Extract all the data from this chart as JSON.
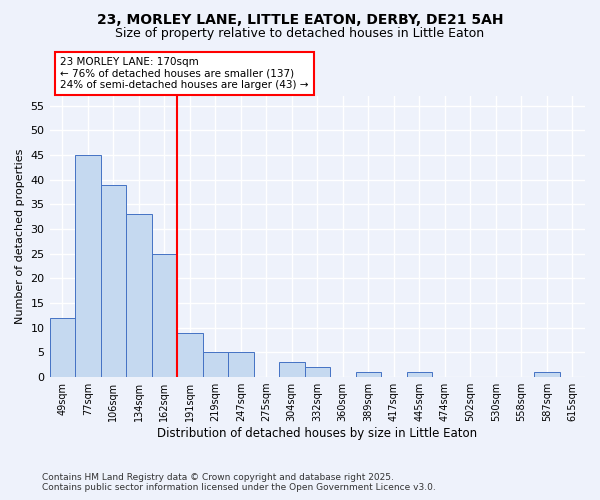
{
  "title_line1": "23, MORLEY LANE, LITTLE EATON, DERBY, DE21 5AH",
  "title_line2": "Size of property relative to detached houses in Little Eaton",
  "categories": [
    "49sqm",
    "77sqm",
    "106sqm",
    "134sqm",
    "162sqm",
    "191sqm",
    "219sqm",
    "247sqm",
    "275sqm",
    "304sqm",
    "332sqm",
    "360sqm",
    "389sqm",
    "417sqm",
    "445sqm",
    "474sqm",
    "502sqm",
    "530sqm",
    "558sqm",
    "587sqm",
    "615sqm"
  ],
  "values": [
    12,
    45,
    39,
    33,
    25,
    9,
    5,
    5,
    0,
    3,
    2,
    0,
    1,
    0,
    1,
    0,
    0,
    0,
    0,
    1,
    0
  ],
  "bar_color": "#c5d9f0",
  "bar_edge_color": "#4472c4",
  "annotation_text": "23 MORLEY LANE: 170sqm\n← 76% of detached houses are smaller (137)\n24% of semi-detached houses are larger (43) →",
  "annotation_box_color": "white",
  "annotation_box_edge_color": "red",
  "vline_x_index": 4,
  "vline_color": "red",
  "ylabel": "Number of detached properties",
  "xlabel": "Distribution of detached houses by size in Little Eaton",
  "ylim": [
    0,
    57
  ],
  "yticks": [
    0,
    5,
    10,
    15,
    20,
    25,
    30,
    35,
    40,
    45,
    50,
    55
  ],
  "background_color": "#eef2fb",
  "grid_color": "#ffffff",
  "footer_line1": "Contains HM Land Registry data © Crown copyright and database right 2025.",
  "footer_line2": "Contains public sector information licensed under the Open Government Licence v3.0."
}
